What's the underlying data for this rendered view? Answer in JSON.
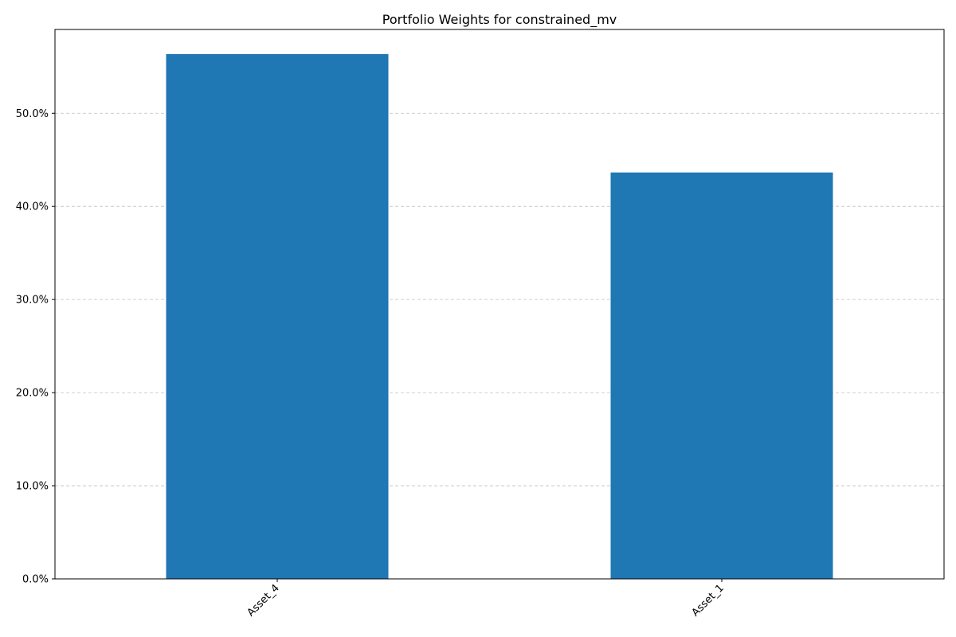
{
  "chart_data": {
    "type": "bar",
    "title": "Portfolio Weights for constrained_mv",
    "xlabel": "",
    "ylabel": "",
    "categories": [
      "Asset_4",
      "Asset_1"
    ],
    "values": [
      0.5636,
      0.4364
    ],
    "ylim": [
      0,
      0.59
    ],
    "yticks": [
      0.0,
      0.1,
      0.2,
      0.3,
      0.4,
      0.5
    ],
    "ytick_labels": [
      "0.0%",
      "10.0%",
      "20.0%",
      "30.0%",
      "40.0%",
      "50.0%"
    ],
    "xtick_rotation": "45deg",
    "grid": "y-dashed",
    "legend": "none",
    "bar_color": "#1f77b4"
  }
}
